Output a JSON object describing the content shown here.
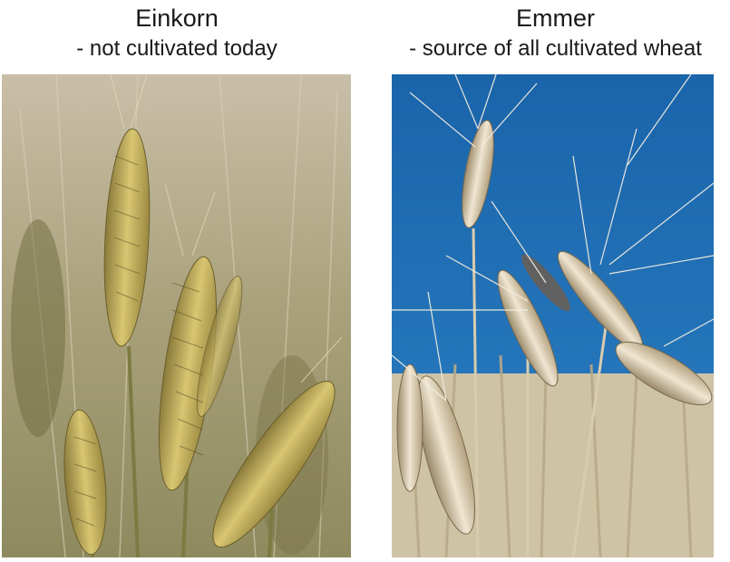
{
  "panels": [
    {
      "title": "Einkorn",
      "subtitle": "- not cultivated today",
      "photo_icon": "wheat-photo-einkorn"
    },
    {
      "title": "Emmer",
      "subtitle": "- source of all cultivated wheat",
      "photo_icon": "wheat-photo-emmer"
    }
  ],
  "colors": {
    "sky": "#1f6fb2",
    "einkorn_grain": "#c9b25a",
    "emmer_grain": "#d9cdb4",
    "background_field": "#b7a98a"
  }
}
